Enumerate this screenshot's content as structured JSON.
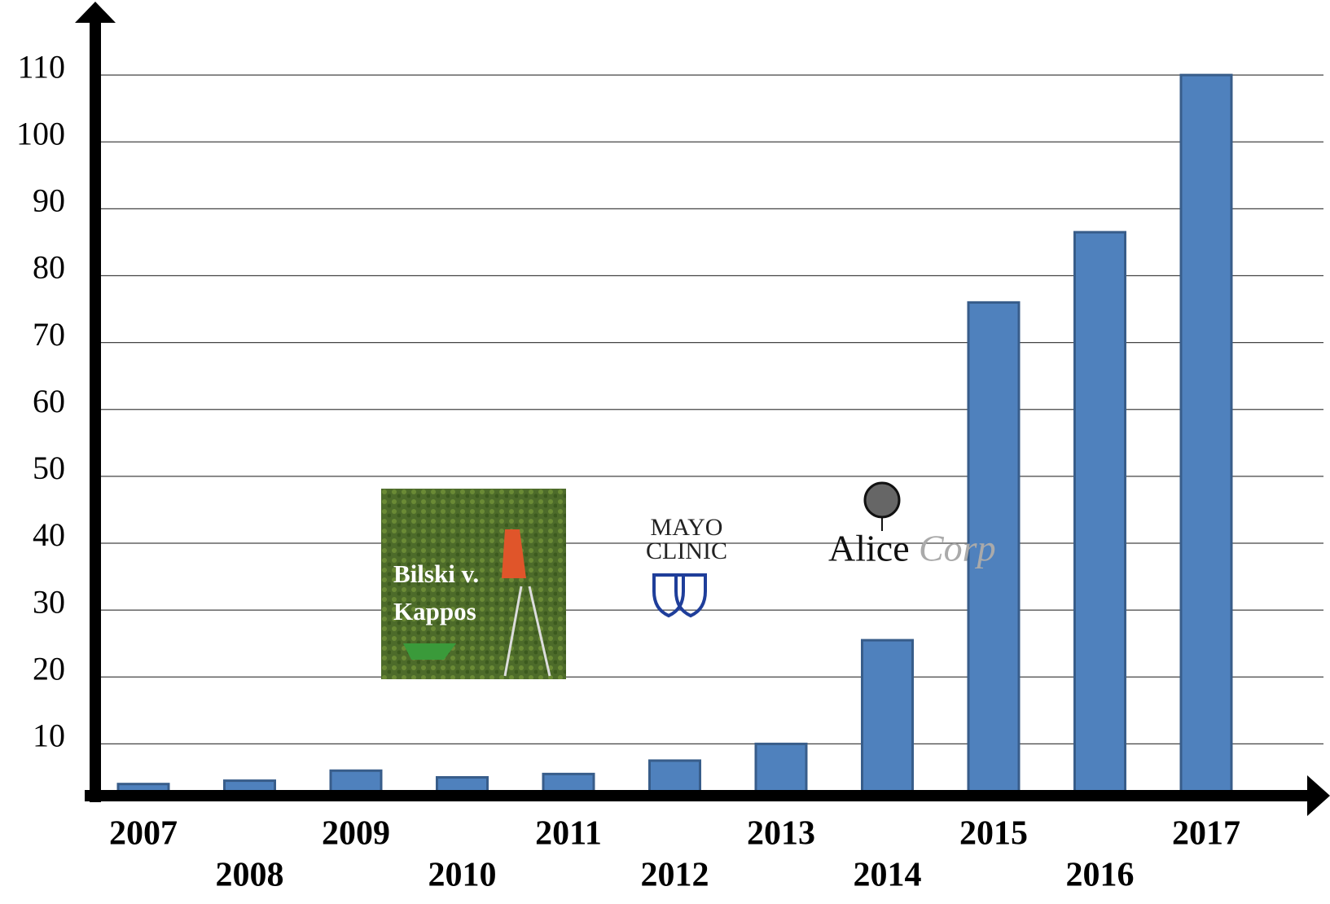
{
  "chart_data": {
    "type": "bar",
    "categories": [
      "2007",
      "2008",
      "2009",
      "2010",
      "2011",
      "2012",
      "2013",
      "2014",
      "2015",
      "2016",
      "2017"
    ],
    "values": [
      4,
      4.5,
      6,
      5,
      5.5,
      7.5,
      10,
      25.5,
      76,
      86.5,
      110
    ],
    "color": "#4f81bd",
    "ylim": [
      2.5,
      120
    ],
    "yticks": [
      10,
      20,
      30,
      40,
      50,
      60,
      70,
      80,
      90,
      100,
      110
    ],
    "grid": true,
    "annotations": [
      "Bilski v.",
      "Kappos",
      "MAYO",
      "CLINIC",
      "Alice",
      "Corp"
    ]
  }
}
